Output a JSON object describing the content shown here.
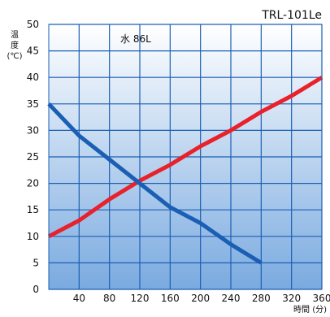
{
  "chart_data": {
    "type": "line",
    "title": "TRL-101Le",
    "ylabel_chars": [
      "温",
      "度",
      "(℃)"
    ],
    "xlabel": "時間 (分)",
    "annotation": "水 86L",
    "xlim": [
      0,
      360
    ],
    "ylim": [
      0,
      50
    ],
    "x_ticks": [
      40,
      80,
      120,
      160,
      200,
      240,
      280,
      320,
      360
    ],
    "y_ticks": [
      0,
      5,
      10,
      15,
      20,
      25,
      30,
      35,
      40,
      45,
      50
    ],
    "grid": true,
    "series": [
      {
        "color": "#e8212b",
        "x": [
          0,
          40,
          80,
          120,
          160,
          200,
          240,
          280,
          320,
          360
        ],
        "y": [
          10,
          13,
          17,
          20.5,
          23.5,
          27,
          30,
          33.5,
          36.5,
          40
        ]
      },
      {
        "color": "#1a5fb4",
        "x": [
          0,
          40,
          80,
          120,
          160,
          200,
          240,
          280
        ],
        "y": [
          35,
          29,
          24.5,
          20,
          15.5,
          12.5,
          8.5,
          5
        ]
      }
    ]
  }
}
